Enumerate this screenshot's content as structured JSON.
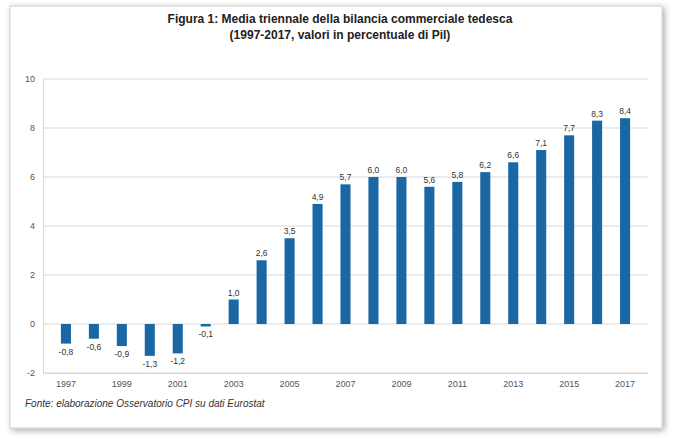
{
  "chart_data": {
    "type": "bar",
    "title": "Figura 1: Media triennale della bilancia commerciale tedesca",
    "subtitle": "(1997-2017, valori in percentuale di Pil)",
    "categories": [
      "1997",
      null,
      "1999",
      null,
      "2001",
      null,
      "2003",
      null,
      "2005",
      null,
      "2007",
      null,
      "2009",
      null,
      "2011",
      null,
      "2013",
      null,
      "2015",
      null,
      "2017"
    ],
    "values": [
      -0.8,
      -0.6,
      -0.9,
      -1.3,
      -1.2,
      -0.1,
      1.0,
      2.6,
      3.5,
      4.9,
      5.7,
      6.0,
      6.0,
      5.6,
      5.8,
      6.2,
      6.6,
      7.1,
      7.7,
      8.3,
      8.4
    ],
    "value_labels": [
      "-0,8",
      "-0,6",
      "-0,9",
      "-1,3",
      "-1,2",
      "-0,1",
      "1,0",
      "2,6",
      "3,5",
      "4,9",
      "5,7",
      "6,0",
      "6,0",
      "5,6",
      "5,8",
      "6,2",
      "6,6",
      "7,1",
      "7,7",
      "8,3",
      "8,4"
    ],
    "data_labels": true,
    "color": "#1a67a6",
    "ylim": [
      -2,
      10
    ],
    "yticks": [
      -2,
      0,
      2,
      4,
      6,
      8,
      10
    ],
    "grid": true,
    "annotations": [
      "Fonte: elaborazione Osservatorio CPI su dati Eurostat"
    ]
  }
}
